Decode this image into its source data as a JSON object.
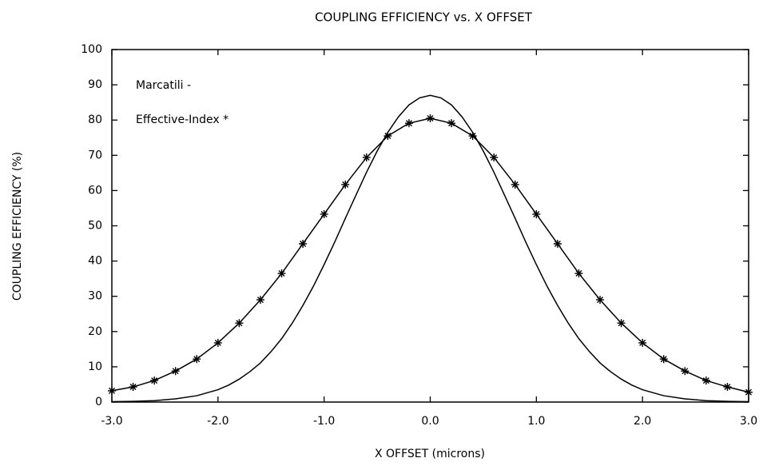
{
  "chart_data": {
    "type": "line",
    "title": "COUPLING EFFICIENCY vs. X OFFSET",
    "x_label": "X OFFSET (microns)",
    "y_label": "COUPLING EFFICIENCY (%)",
    "xlim": [
      -3,
      3
    ],
    "ylim": [
      0,
      100
    ],
    "xticks": [
      {
        "value": -3,
        "label": "-3.0"
      },
      {
        "value": -2,
        "label": "-2.0"
      },
      {
        "value": -1,
        "label": "-1.0"
      },
      {
        "value": 0,
        "label": "0.0"
      },
      {
        "value": 1,
        "label": "1.0"
      },
      {
        "value": 2,
        "label": "2.0"
      },
      {
        "value": 3,
        "label": "3.0"
      }
    ],
    "yticks": [
      0,
      10,
      20,
      30,
      40,
      50,
      60,
      70,
      80,
      90,
      100
    ],
    "series": [
      {
        "name": "Marcatili -",
        "color": "#000000",
        "marker": "none",
        "x": [
          -3.0,
          -2.8,
          -2.6,
          -2.4,
          -2.2,
          -2.0,
          -1.9,
          -1.8,
          -1.7,
          -1.6,
          -1.5,
          -1.4,
          -1.3,
          -1.2,
          -1.1,
          -1.0,
          -0.9,
          -0.8,
          -0.7,
          -0.6,
          -0.5,
          -0.4,
          -0.3,
          -0.2,
          -0.1,
          0.0,
          0.1,
          0.2,
          0.3,
          0.4,
          0.5,
          0.6,
          0.7,
          0.8,
          0.9,
          1.0,
          1.1,
          1.2,
          1.3,
          1.4,
          1.5,
          1.6,
          1.7,
          1.8,
          1.9,
          2.0,
          2.2,
          2.4,
          2.6,
          2.8,
          3.0
        ],
        "values": [
          0.1,
          0.2,
          0.4,
          0.9,
          1.8,
          3.5,
          4.8,
          6.5,
          8.6,
          11.1,
          14.3,
          18.0,
          22.4,
          27.4,
          32.9,
          39.0,
          45.4,
          52.1,
          58.7,
          65.2,
          71.2,
          76.5,
          80.9,
          84.3,
          86.3,
          87.0,
          86.3,
          84.3,
          80.9,
          76.5,
          71.2,
          65.2,
          58.7,
          52.1,
          45.4,
          39.0,
          32.9,
          27.4,
          22.4,
          18.0,
          14.3,
          11.1,
          8.6,
          6.5,
          4.8,
          3.5,
          1.8,
          0.9,
          0.4,
          0.2,
          0.1
        ]
      },
      {
        "name": "Effective-Index *",
        "color": "#000000",
        "marker": "asterisk",
        "x": [
          -3.0,
          -2.8,
          -2.6,
          -2.4,
          -2.2,
          -2.0,
          -1.8,
          -1.6,
          -1.4,
          -1.2,
          -1.0,
          -0.8,
          -0.6,
          -0.4,
          -0.2,
          0.0,
          0.2,
          0.4,
          0.6,
          0.8,
          1.0,
          1.2,
          1.4,
          1.6,
          1.8,
          2.0,
          2.2,
          2.4,
          2.6,
          2.8,
          3.0
        ],
        "values": [
          3.2,
          4.3,
          6.1,
          8.8,
          12.2,
          16.8,
          22.4,
          29.0,
          36.5,
          44.9,
          53.3,
          61.7,
          69.4,
          75.5,
          79.1,
          80.5,
          79.1,
          75.5,
          69.4,
          61.7,
          53.3,
          44.9,
          36.5,
          29.0,
          22.4,
          16.8,
          12.2,
          8.8,
          6.1,
          4.3,
          2.8
        ]
      }
    ]
  }
}
